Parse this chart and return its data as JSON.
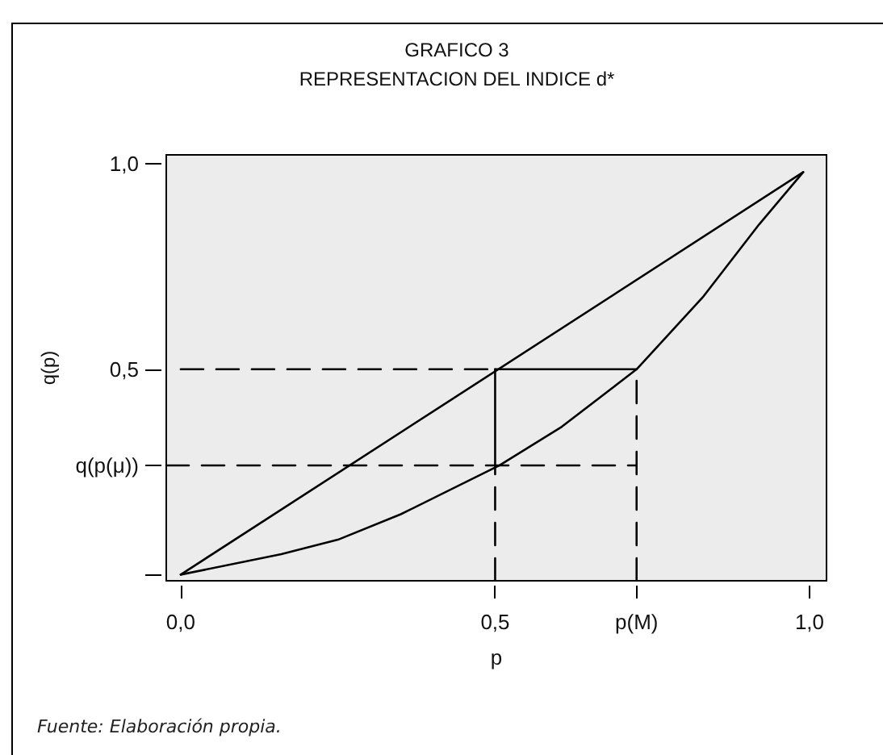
{
  "chart_data": {
    "type": "line",
    "title": "GRAFICO 3",
    "subtitle": "REPRESENTACION DEL INDICE d*",
    "xlabel": "p",
    "ylabel": "q(p)",
    "annotations": [
      "Fuente: Elaboración propia."
    ],
    "xlim": [
      -0.023,
      1.027
    ],
    "ylim": [
      -0.015,
      1.022
    ],
    "xticks": [
      {
        "value": 0,
        "label": "0,0"
      },
      {
        "value": 0.5,
        "label": "0,5"
      },
      {
        "value": 0.725,
        "label": "p(M)"
      },
      {
        "value": 1,
        "label": "1,0"
      }
    ],
    "yticks": [
      {
        "value": 0,
        "label": null
      },
      {
        "value": 0.266,
        "label": "q(p(μ))"
      },
      {
        "value": 0.5,
        "label": "0,5"
      },
      {
        "value": 1,
        "label": "1,0"
      }
    ],
    "grid": false,
    "marker": "none",
    "line_style": "solid",
    "series": [
      {
        "color": "#000000",
        "x": [
          0,
          0.99
        ],
        "values": [
          0,
          0.98
        ]
      },
      {
        "color": "#000000",
        "x": [
          0,
          0.16,
          0.25,
          0.35,
          0.507,
          0.606,
          0.725,
          0.83,
          0.92,
          0.99
        ],
        "values": [
          0,
          0.05,
          0.085,
          0.147,
          0.266,
          0.36,
          0.5,
          0.675,
          0.853,
          0.98
        ]
      },
      {
        "color": "#000000",
        "x": [
          0.5,
          0.725
        ],
        "values": [
          0.5,
          0.5
        ]
      },
      {
        "color": "#000000",
        "x": [
          0.5,
          0.5
        ],
        "values": [
          0.266,
          0.5
        ]
      },
      {
        "color": "#000000",
        "line_style": "dashed",
        "x": [
          0,
          0.5
        ],
        "values": [
          0.5,
          0.5
        ]
      },
      {
        "color": "#000000",
        "line_style": "dashed",
        "x": [
          -0.023,
          0.725
        ],
        "values": [
          0.266,
          0.266
        ]
      },
      {
        "color": "#000000",
        "line_style": "dashed",
        "x": [
          0.5,
          0.5
        ],
        "values": [
          -0.015,
          0.266
        ]
      },
      {
        "color": "#000000",
        "line_style": "dashed",
        "x": [
          0.725,
          0.725
        ],
        "values": [
          -0.015,
          0.5
        ]
      }
    ]
  }
}
